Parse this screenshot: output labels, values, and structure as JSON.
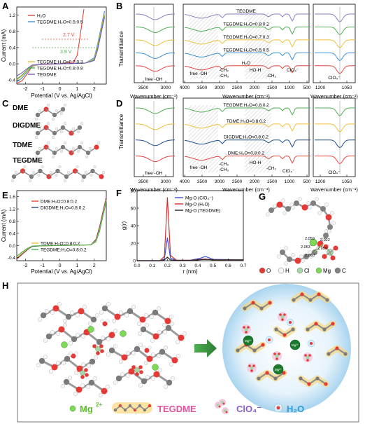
{
  "panels": {
    "A": {
      "letter": "A",
      "ylabel": "Current (mA)",
      "xlabel": "Potential (V vs. Ag/AgCl)",
      "legend_top": [
        "H₂O",
        "TEGDME:H₂O=0.5:0.5"
      ],
      "legend_bottom": [
        "TEGDME:H₂O=0.7:0.3",
        "TEGDME:H₂O=0.8:0.8",
        "TEGDME"
      ],
      "annot_1": "2.7 V",
      "annot_2": "3.9 V",
      "xticks": [
        "-2",
        "-1",
        "0",
        "1",
        "2"
      ],
      "yticks": [
        "-0.4",
        "0.0",
        "0.4",
        "0.8",
        "1.2"
      ],
      "colors": [
        "#e4473f",
        "#3b8fd9",
        "#f0c03c",
        "#4caf50",
        "#7e57c2"
      ]
    },
    "B": {
      "letter": "B",
      "ylabel": "Transmittance",
      "xlabel": "Wavenumber (cm⁻¹)",
      "labels": [
        "TEGDME",
        "TEGDME:H₂O=0.8:0.2",
        "TEGDME:H₂O=0.7:0.3",
        "TEGDME:H₂O=0.5:0.5",
        "H₂O"
      ],
      "annot_free_oh": "free -OH",
      "annot_ch2": "-CH₂",
      "annot_ch3": "-CH₃",
      "annot_hoh": "HO-H",
      "annot_clo4": "ClO₄⁻",
      "ticks_left": [
        "3500",
        "3000"
      ],
      "ticks_mid": [
        "4000",
        "3500",
        "3000",
        "2500",
        "2000",
        "1500",
        "1000",
        "500"
      ],
      "ticks_right": [
        "1200",
        "1050"
      ]
    },
    "C": {
      "letter": "C",
      "molecules": [
        "DME",
        "DIGDME",
        "TDME",
        "TEGDME"
      ]
    },
    "D": {
      "letter": "D",
      "labels": [
        "TEGDME:H₂O=0.8:0.2",
        "TDME:H₂O=0.8:0.2",
        "DIGDME:H₂O=0.8:0.2",
        "DME:H₂O=0.8:0.2"
      ]
    },
    "E": {
      "letter": "E",
      "ylabel": "Current (mA)",
      "xlabel": "Potential (V vs. Ag/AgCl)",
      "legend_top": [
        "DME:H₂O=0.8:0.2",
        "DIGDME:H₂O=0.8:0.2"
      ],
      "legend_bottom": [
        "TDME:H₂O=0.8:0.2",
        "TEGDME:H₂O=0.8:0.2"
      ],
      "xticks": [
        "-2",
        "-1",
        "0",
        "1",
        "2"
      ],
      "yticks": [
        "-0.4",
        "0.0",
        "0.4",
        "0.8",
        "1.2",
        "1.6"
      ],
      "colors": [
        "#e4473f",
        "#1f4e8c",
        "#f0c03c",
        "#4caf50"
      ]
    },
    "F": {
      "letter": "F",
      "ylabel": "g(r)",
      "xlabel": "r (nm)",
      "legend": [
        "Mg-O (ClO₄⁻)",
        "Mg-O (H₂O)",
        "Mg-O (TEGDME)"
      ],
      "xticks": [
        "0.0",
        "0.1",
        "0.2",
        "0.3",
        "0.4",
        "0.5",
        "0.6",
        "0.7"
      ],
      "yticks": [
        "0",
        "20",
        "40",
        "60",
        "80"
      ],
      "colors": [
        "#3b4fd9",
        "#d32f2f",
        "#222222"
      ]
    },
    "G": {
      "letter": "G",
      "distances": [
        "2.059",
        "2.022",
        "2.053",
        "2.059",
        "2.060"
      ],
      "legend": [
        "O",
        "H",
        "Cl",
        "Mg",
        "C"
      ]
    },
    "H": {
      "letter": "H",
      "legend_mg": "Mg",
      "legend_mg_sup": "2+",
      "legend_tegdme": "TEGDME",
      "legend_clo4": "ClO₄⁻",
      "legend_h2o": "H₂O",
      "mg_label": "Mg²⁺"
    }
  },
  "chart_data": [
    {
      "type": "line",
      "panel": "A",
      "xlabel": "Potential (V vs. Ag/AgCl)",
      "ylabel": "Current (mA)",
      "xlim": [
        -2.5,
        2.7
      ],
      "ylim": [
        -0.5,
        1.4
      ],
      "series": [
        {
          "name": "H₂O",
          "x": [
            -2.5,
            -2.2,
            -1.9,
            -1.6,
            -1.2,
            0,
            0.8,
            1.0,
            1.1,
            1.2,
            1.3,
            1.4
          ],
          "y": [
            -0.48,
            -0.42,
            -0.25,
            -0.06,
            -0.02,
            0.0,
            0.05,
            0.2,
            0.45,
            0.75,
            1.05,
            1.35
          ]
        },
        {
          "name": "TEGDME:H₂O=0.5:0.5",
          "x": [
            -2.5,
            -2.2,
            -1.9,
            -1.6,
            -1.0,
            0,
            1.5,
            2.0,
            2.2,
            2.4,
            2.6
          ],
          "y": [
            -0.45,
            -0.35,
            -0.2,
            -0.05,
            -0.01,
            0.0,
            0.02,
            0.15,
            0.5,
            0.9,
            1.3
          ]
        },
        {
          "name": "TEGDME:H₂O=0.7:0.3",
          "x": [
            -2.5,
            -2.2,
            -1.9,
            -1.6,
            -1.0,
            0,
            1.5,
            2.0,
            2.2,
            2.4,
            2.6
          ],
          "y": [
            -0.4,
            -0.3,
            -0.18,
            -0.04,
            -0.01,
            0.0,
            0.02,
            0.12,
            0.45,
            0.85,
            1.25
          ]
        },
        {
          "name": "TEGDME:H₂O=0.8:0.8",
          "x": [
            -2.5,
            -2.2,
            -1.9,
            -1.6,
            -1.0,
            0,
            1.5,
            2.0,
            2.2,
            2.4,
            2.6
          ],
          "y": [
            -0.38,
            -0.28,
            -0.15,
            -0.03,
            -0.01,
            0.0,
            0.02,
            0.1,
            0.4,
            0.8,
            1.2
          ]
        },
        {
          "name": "TEGDME",
          "x": [
            -2.5,
            -2.2,
            -1.9,
            -1.6,
            -1.0,
            0,
            1.5,
            2.0,
            2.2,
            2.4,
            2.6
          ],
          "y": [
            -0.3,
            -0.22,
            -0.12,
            -0.03,
            -0.01,
            0.0,
            0.02,
            0.08,
            0.35,
            0.75,
            1.15
          ]
        }
      ]
    },
    {
      "type": "line",
      "panel": "E",
      "xlabel": "Potential (V vs. Ag/AgCl)",
      "ylabel": "Current (mA)",
      "xlim": [
        -2.5,
        2.7
      ],
      "ylim": [
        -0.5,
        1.8
      ],
      "series": [
        {
          "name": "DME:H₂O=0.8:0.2",
          "x": [
            -2.5,
            -2.2,
            -1.9,
            -1.6,
            -1.0,
            0,
            1.8,
            2.1,
            2.3,
            2.5,
            2.7
          ],
          "y": [
            -0.45,
            -0.3,
            -0.15,
            -0.03,
            -0.01,
            0.0,
            0.02,
            0.2,
            0.6,
            1.1,
            1.6
          ]
        },
        {
          "name": "DIGDME:H₂O=0.8:0.2",
          "x": [
            -2.5,
            -2.2,
            -1.9,
            -1.6,
            -1.0,
            0,
            1.8,
            2.1,
            2.3,
            2.5,
            2.7
          ],
          "y": [
            -0.42,
            -0.28,
            -0.14,
            -0.03,
            -0.01,
            0.0,
            0.02,
            0.18,
            0.55,
            1.05,
            1.55
          ]
        },
        {
          "name": "TDME:H₂O=0.8:0.2",
          "x": [
            -2.5,
            -2.2,
            -1.9,
            -1.6,
            -1.0,
            0,
            1.8,
            2.1,
            2.3,
            2.5,
            2.7
          ],
          "y": [
            -0.4,
            -0.26,
            -0.12,
            -0.02,
            -0.01,
            0.0,
            0.02,
            0.15,
            0.5,
            1.0,
            1.5
          ]
        },
        {
          "name": "TEGDME:H₂O=0.8:0.2",
          "x": [
            -2.5,
            -2.2,
            -1.9,
            -1.6,
            -1.0,
            0,
            1.8,
            2.1,
            2.3,
            2.5,
            2.7
          ],
          "y": [
            -0.35,
            -0.22,
            -0.1,
            -0.02,
            -0.01,
            0.0,
            0.02,
            0.12,
            0.45,
            0.95,
            1.45
          ]
        }
      ]
    },
    {
      "type": "line",
      "panel": "F",
      "xlabel": "r (nm)",
      "ylabel": "g(r)",
      "xlim": [
        0.0,
        0.7
      ],
      "ylim": [
        0,
        80
      ],
      "series": [
        {
          "name": "Mg-O (ClO₄⁻)",
          "x": [
            0.0,
            0.15,
            0.18,
            0.2,
            0.22,
            0.26,
            0.35,
            0.42,
            0.45,
            0.5,
            0.7
          ],
          "y": [
            0,
            0,
            2,
            26,
            3,
            0.5,
            0.5,
            3,
            5,
            1.5,
            1
          ]
        },
        {
          "name": "Mg-O (H₂O)",
          "x": [
            0.0,
            0.15,
            0.18,
            0.2,
            0.22,
            0.26,
            0.35,
            0.42,
            0.45,
            0.5,
            0.7
          ],
          "y": [
            0,
            0,
            5,
            72,
            6,
            0.5,
            0.5,
            1.5,
            2,
            1,
            1
          ]
        },
        {
          "name": "Mg-O (TEGDME)",
          "x": [
            0.0,
            0.15,
            0.18,
            0.2,
            0.22,
            0.26,
            0.35,
            0.42,
            0.45,
            0.5,
            0.7
          ],
          "y": [
            0,
            0,
            1,
            4,
            1,
            0.3,
            0.3,
            1.2,
            1.5,
            1,
            1
          ]
        }
      ]
    }
  ]
}
